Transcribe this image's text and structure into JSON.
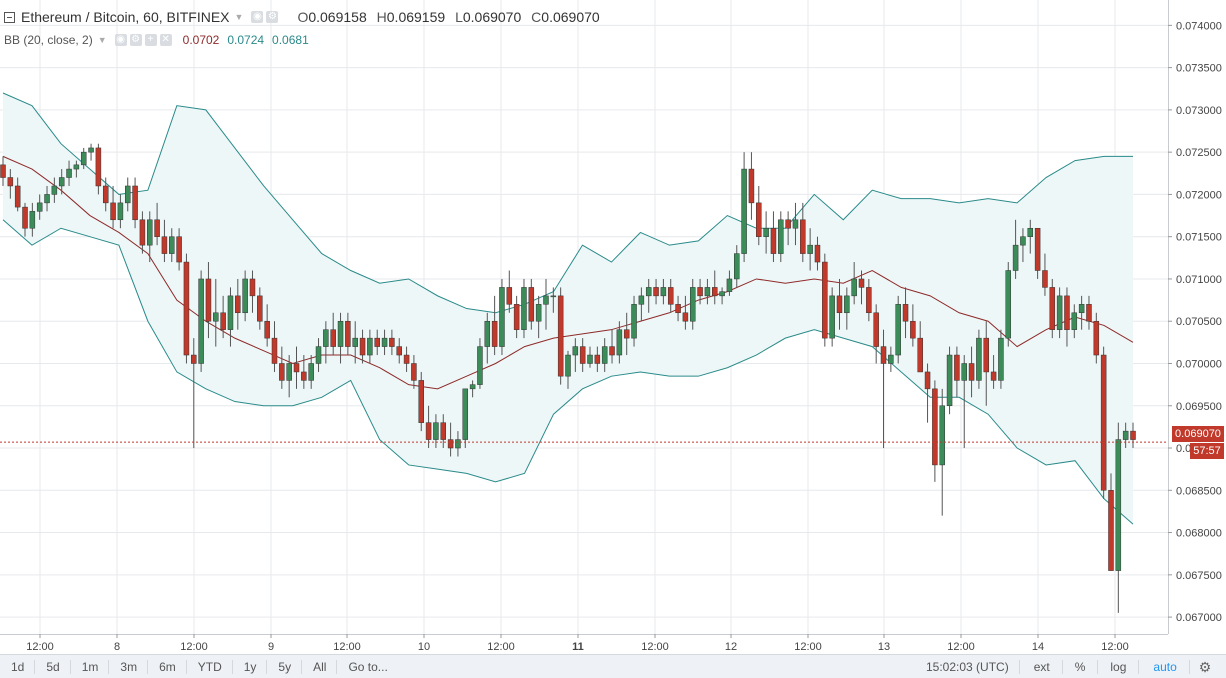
{
  "legend": {
    "symbol": "Ethereum / Bitcoin, 60, BITFINEX",
    "ohlc": [
      {
        "k": "O",
        "v": "0.069158"
      },
      {
        "k": "H",
        "v": "0.069159"
      },
      {
        "k": "L",
        "v": "0.069070"
      },
      {
        "k": "C",
        "v": "0.069070"
      }
    ],
    "indicator": "BB (20, close, 2)",
    "bb_values": [
      {
        "v": "0.0702",
        "color": "#8e2a2a"
      },
      {
        "v": "0.0724",
        "color": "#2a8a8a"
      },
      {
        "v": "0.0681",
        "color": "#2a8a8a"
      }
    ]
  },
  "price_axis": {
    "ticks": [
      "0.074000",
      "0.073500",
      "0.073000",
      "0.072500",
      "0.072000",
      "0.071500",
      "0.071000",
      "0.070500",
      "0.070000",
      "0.069500",
      "0.069000",
      "0.068500",
      "0.068000",
      "0.067500",
      "0.067000"
    ],
    "last_price": "0.069070",
    "countdown": "57:57"
  },
  "time_axis": {
    "labels": [
      "12:00",
      "8",
      "12:00",
      "9",
      "12:00",
      "10",
      "12:00",
      "11",
      "12:00",
      "12",
      "12:00",
      "13",
      "12:00",
      "14",
      "12:00"
    ],
    "bold_label": "11"
  },
  "bottom_bar": {
    "timeframes": [
      "1d",
      "5d",
      "1m",
      "3m",
      "6m",
      "YTD",
      "1y",
      "5y",
      "All"
    ],
    "goto": "Go to...",
    "clock": "15:02:03 (UTC)",
    "ext": "ext",
    "percent": "%",
    "log": "log",
    "auto": "auto"
  },
  "colors": {
    "up": "#3c8c5a",
    "down": "#c0392b",
    "bb_band": "#2a8a8a",
    "bb_basis": "#8e2a2a",
    "bb_fill": "#eef7f7",
    "auto": "#2196f3"
  },
  "chart_data": {
    "type": "candlestick",
    "title": "Ethereum / Bitcoin, 60, BITFINEX",
    "ylim": [
      0.0668,
      0.0743
    ],
    "grid": true,
    "candles": [
      [
        0.07235,
        0.07245,
        0.0721,
        0.0722
      ],
      [
        0.0722,
        0.0723,
        0.07195,
        0.0721
      ],
      [
        0.0721,
        0.0722,
        0.0718,
        0.07185
      ],
      [
        0.07185,
        0.0719,
        0.0715,
        0.0716
      ],
      [
        0.0716,
        0.0719,
        0.0715,
        0.0718
      ],
      [
        0.0718,
        0.072,
        0.0717,
        0.0719
      ],
      [
        0.0719,
        0.0721,
        0.0718,
        0.072
      ],
      [
        0.072,
        0.0722,
        0.0719,
        0.0721
      ],
      [
        0.0721,
        0.0723,
        0.072,
        0.0722
      ],
      [
        0.0722,
        0.0724,
        0.0721,
        0.0723
      ],
      [
        0.0723,
        0.0724,
        0.0722,
        0.07235
      ],
      [
        0.07235,
        0.07255,
        0.0723,
        0.0725
      ],
      [
        0.0725,
        0.0726,
        0.0724,
        0.07255
      ],
      [
        0.07255,
        0.0726,
        0.072,
        0.0721
      ],
      [
        0.0721,
        0.0722,
        0.0718,
        0.0719
      ],
      [
        0.0719,
        0.0721,
        0.0716,
        0.0717
      ],
      [
        0.0717,
        0.072,
        0.0716,
        0.0719
      ],
      [
        0.0719,
        0.0722,
        0.0718,
        0.0721
      ],
      [
        0.0721,
        0.0722,
        0.0716,
        0.0717
      ],
      [
        0.0717,
        0.0718,
        0.0713,
        0.0714
      ],
      [
        0.0714,
        0.0718,
        0.0712,
        0.0717
      ],
      [
        0.0717,
        0.0719,
        0.0714,
        0.0715
      ],
      [
        0.0715,
        0.0717,
        0.0712,
        0.0713
      ],
      [
        0.0713,
        0.0716,
        0.0712,
        0.0715
      ],
      [
        0.0715,
        0.0716,
        0.0711,
        0.0712
      ],
      [
        0.0712,
        0.0713,
        0.07,
        0.0701
      ],
      [
        0.0701,
        0.0703,
        0.069,
        0.07
      ],
      [
        0.07,
        0.0711,
        0.0699,
        0.071
      ],
      [
        0.071,
        0.0712,
        0.0703,
        0.0705
      ],
      [
        0.0705,
        0.071,
        0.0702,
        0.0706
      ],
      [
        0.0706,
        0.0708,
        0.0703,
        0.0704
      ],
      [
        0.0704,
        0.0709,
        0.0702,
        0.0708
      ],
      [
        0.0708,
        0.071,
        0.0704,
        0.0706
      ],
      [
        0.0706,
        0.0711,
        0.0705,
        0.071
      ],
      [
        0.071,
        0.0711,
        0.0706,
        0.0708
      ],
      [
        0.0708,
        0.0709,
        0.0704,
        0.0705
      ],
      [
        0.0705,
        0.0707,
        0.0702,
        0.0703
      ],
      [
        0.0703,
        0.0705,
        0.0699,
        0.07
      ],
      [
        0.07,
        0.0702,
        0.0697,
        0.0698
      ],
      [
        0.0698,
        0.0701,
        0.0696,
        0.07
      ],
      [
        0.07,
        0.0702,
        0.0697,
        0.0699
      ],
      [
        0.0699,
        0.0701,
        0.0697,
        0.0698
      ],
      [
        0.0698,
        0.0701,
        0.0697,
        0.07
      ],
      [
        0.07,
        0.0703,
        0.0699,
        0.0702
      ],
      [
        0.0702,
        0.0705,
        0.07,
        0.0704
      ],
      [
        0.0704,
        0.0706,
        0.0701,
        0.0702
      ],
      [
        0.0702,
        0.0706,
        0.07,
        0.0705
      ],
      [
        0.0705,
        0.0706,
        0.0701,
        0.0702
      ],
      [
        0.0702,
        0.0705,
        0.07,
        0.0703
      ],
      [
        0.0703,
        0.0704,
        0.07,
        0.0701
      ],
      [
        0.0701,
        0.0704,
        0.07,
        0.0703
      ],
      [
        0.0703,
        0.0704,
        0.0701,
        0.0702
      ],
      [
        0.0702,
        0.0704,
        0.0701,
        0.0703
      ],
      [
        0.0703,
        0.0704,
        0.0701,
        0.0702
      ],
      [
        0.0702,
        0.0703,
        0.07,
        0.0701
      ],
      [
        0.0701,
        0.0702,
        0.0699,
        0.07
      ],
      [
        0.07,
        0.0701,
        0.0697,
        0.0698
      ],
      [
        0.0698,
        0.0699,
        0.0692,
        0.0693
      ],
      [
        0.0693,
        0.0695,
        0.069,
        0.0691
      ],
      [
        0.0691,
        0.0694,
        0.069,
        0.0693
      ],
      [
        0.0693,
        0.0694,
        0.069,
        0.0691
      ],
      [
        0.0691,
        0.0693,
        0.0689,
        0.069
      ],
      [
        0.069,
        0.0692,
        0.0689,
        0.0691
      ],
      [
        0.0691,
        0.0697,
        0.069,
        0.0697
      ],
      [
        0.0697,
        0.0698,
        0.0696,
        0.06975
      ],
      [
        0.06975,
        0.0703,
        0.0697,
        0.0702
      ],
      [
        0.0702,
        0.0706,
        0.07,
        0.0705
      ],
      [
        0.0705,
        0.0708,
        0.0701,
        0.0702
      ],
      [
        0.0702,
        0.071,
        0.0701,
        0.0709
      ],
      [
        0.0709,
        0.0711,
        0.0706,
        0.0707
      ],
      [
        0.0707,
        0.0708,
        0.0703,
        0.0704
      ],
      [
        0.0704,
        0.071,
        0.0703,
        0.0709
      ],
      [
        0.0709,
        0.071,
        0.0704,
        0.0705
      ],
      [
        0.0705,
        0.0708,
        0.0703,
        0.0707
      ],
      [
        0.0707,
        0.071,
        0.0704,
        0.0708
      ],
      [
        0.0708,
        0.0709,
        0.0706,
        0.0708
      ],
      [
        0.0708,
        0.0709,
        0.06975,
        0.06985
      ],
      [
        0.06985,
        0.07015,
        0.0697,
        0.0701
      ],
      [
        0.0701,
        0.0703,
        0.0699,
        0.0702
      ],
      [
        0.0702,
        0.0703,
        0.0699,
        0.07
      ],
      [
        0.07,
        0.0702,
        0.06995,
        0.0701
      ],
      [
        0.0701,
        0.0702,
        0.0699,
        0.07
      ],
      [
        0.07,
        0.0703,
        0.0699,
        0.0702
      ],
      [
        0.0702,
        0.0704,
        0.07,
        0.0701
      ],
      [
        0.0701,
        0.0705,
        0.07,
        0.0704
      ],
      [
        0.0704,
        0.0706,
        0.0701,
        0.0703
      ],
      [
        0.0703,
        0.0708,
        0.0702,
        0.0707
      ],
      [
        0.0707,
        0.0709,
        0.0705,
        0.0708
      ],
      [
        0.0708,
        0.071,
        0.0706,
        0.0709
      ],
      [
        0.0709,
        0.071,
        0.0707,
        0.0708
      ],
      [
        0.0708,
        0.071,
        0.0707,
        0.0709
      ],
      [
        0.0709,
        0.071,
        0.0706,
        0.0707
      ],
      [
        0.0707,
        0.0708,
        0.0705,
        0.0706
      ],
      [
        0.0706,
        0.0708,
        0.0704,
        0.0705
      ],
      [
        0.0705,
        0.071,
        0.0704,
        0.0709
      ],
      [
        0.0709,
        0.071,
        0.0707,
        0.0708
      ],
      [
        0.0708,
        0.071,
        0.0707,
        0.0709
      ],
      [
        0.0709,
        0.0711,
        0.0707,
        0.0708
      ],
      [
        0.0708,
        0.0709,
        0.0707,
        0.07085
      ],
      [
        0.07085,
        0.0711,
        0.0708,
        0.071
      ],
      [
        0.071,
        0.0714,
        0.0709,
        0.0713
      ],
      [
        0.0713,
        0.0725,
        0.0712,
        0.0723
      ],
      [
        0.0723,
        0.0725,
        0.0717,
        0.0719
      ],
      [
        0.0719,
        0.0721,
        0.0714,
        0.0715
      ],
      [
        0.0715,
        0.0718,
        0.0713,
        0.0716
      ],
      [
        0.0716,
        0.0718,
        0.0712,
        0.0713
      ],
      [
        0.0713,
        0.0718,
        0.0712,
        0.0717
      ],
      [
        0.0717,
        0.0718,
        0.0714,
        0.0716
      ],
      [
        0.0716,
        0.0719,
        0.0714,
        0.0717
      ],
      [
        0.0717,
        0.0719,
        0.0712,
        0.0713
      ],
      [
        0.0713,
        0.0716,
        0.0711,
        0.0714
      ],
      [
        0.0714,
        0.0715,
        0.0711,
        0.0712
      ],
      [
        0.0712,
        0.0713,
        0.0702,
        0.0703
      ],
      [
        0.0703,
        0.0709,
        0.0702,
        0.0708
      ],
      [
        0.0708,
        0.071,
        0.0704,
        0.0706
      ],
      [
        0.0706,
        0.0709,
        0.0704,
        0.0708
      ],
      [
        0.0708,
        0.0712,
        0.0707,
        0.071
      ],
      [
        0.071,
        0.0711,
        0.0707,
        0.0709
      ],
      [
        0.0709,
        0.071,
        0.0705,
        0.0706
      ],
      [
        0.0706,
        0.0707,
        0.07,
        0.0702
      ],
      [
        0.0702,
        0.0704,
        0.069,
        0.07
      ],
      [
        0.07,
        0.0702,
        0.0699,
        0.0701
      ],
      [
        0.0701,
        0.0708,
        0.07,
        0.0707
      ],
      [
        0.0707,
        0.0709,
        0.0703,
        0.0705
      ],
      [
        0.0705,
        0.0707,
        0.0702,
        0.0703
      ],
      [
        0.0703,
        0.0705,
        0.0699,
        0.0699
      ],
      [
        0.0699,
        0.07,
        0.0693,
        0.0697
      ],
      [
        0.0697,
        0.0698,
        0.0686,
        0.0688
      ],
      [
        0.0688,
        0.0697,
        0.0682,
        0.0695
      ],
      [
        0.0695,
        0.0702,
        0.0694,
        0.0701
      ],
      [
        0.0701,
        0.0702,
        0.0696,
        0.0698
      ],
      [
        0.0698,
        0.0701,
        0.069,
        0.07
      ],
      [
        0.07,
        0.0702,
        0.0696,
        0.0698
      ],
      [
        0.0698,
        0.0704,
        0.0697,
        0.0703
      ],
      [
        0.0703,
        0.0705,
        0.0695,
        0.0699
      ],
      [
        0.0699,
        0.0701,
        0.0697,
        0.0698
      ],
      [
        0.0698,
        0.0704,
        0.0697,
        0.0703
      ],
      [
        0.0703,
        0.0712,
        0.0702,
        0.0711
      ],
      [
        0.0711,
        0.0717,
        0.071,
        0.0714
      ],
      [
        0.0714,
        0.0716,
        0.0712,
        0.0715
      ],
      [
        0.0715,
        0.0717,
        0.0713,
        0.0716
      ],
      [
        0.0716,
        0.0716,
        0.071,
        0.0711
      ],
      [
        0.0711,
        0.0713,
        0.0708,
        0.0709
      ],
      [
        0.0709,
        0.071,
        0.0703,
        0.0704
      ],
      [
        0.0704,
        0.0709,
        0.0703,
        0.0708
      ],
      [
        0.0708,
        0.0709,
        0.0702,
        0.0704
      ],
      [
        0.0704,
        0.0707,
        0.0703,
        0.0706
      ],
      [
        0.0706,
        0.0708,
        0.0704,
        0.0707
      ],
      [
        0.0707,
        0.0708,
        0.0704,
        0.0705
      ],
      [
        0.0705,
        0.0706,
        0.07,
        0.0701
      ],
      [
        0.0701,
        0.0702,
        0.0684,
        0.0685
      ],
      [
        0.0685,
        0.0687,
        0.06755,
        0.06755
      ],
      [
        0.06755,
        0.0693,
        0.06705,
        0.0691
      ],
      [
        0.0691,
        0.0693,
        0.069,
        0.0692
      ],
      [
        0.0692,
        0.0693,
        0.069,
        0.0691
      ]
    ],
    "bb_upper": [
      0.0732,
      0.07305,
      0.0726,
      0.0723,
      0.072,
      0.07205,
      0.07305,
      0.073,
      0.07255,
      0.0721,
      0.0717,
      0.0713,
      0.0711,
      0.07095,
      0.071,
      0.0708,
      0.07065,
      0.0706,
      0.0707,
      0.07085,
      0.0714,
      0.0712,
      0.07155,
      0.0714,
      0.07145,
      0.07175,
      0.0716,
      0.0716,
      0.072,
      0.0717,
      0.07205,
      0.07195,
      0.07195,
      0.0719,
      0.07195,
      0.0719,
      0.0722,
      0.0724,
      0.07245,
      0.07245
    ],
    "bb_lower": [
      0.0717,
      0.0714,
      0.0716,
      0.0715,
      0.0714,
      0.0705,
      0.0699,
      0.0697,
      0.06955,
      0.0695,
      0.0695,
      0.0696,
      0.0698,
      0.0691,
      0.0688,
      0.06875,
      0.0687,
      0.0686,
      0.0687,
      0.0694,
      0.0697,
      0.06985,
      0.0699,
      0.06985,
      0.06985,
      0.06995,
      0.0701,
      0.0703,
      0.0704,
      0.0703,
      0.0702,
      0.0699,
      0.0696,
      0.0696,
      0.0694,
      0.069,
      0.0688,
      0.06885,
      0.0684,
      0.0681
    ],
    "bb_basis": [
      0.07245,
      0.0723,
      0.07205,
      0.07175,
      0.07155,
      0.0713,
      0.07075,
      0.0705,
      0.0703,
      0.07015,
      0.07,
      0.0701,
      0.0701,
      0.06995,
      0.06975,
      0.0697,
      0.06985,
      0.07,
      0.0702,
      0.0703,
      0.07035,
      0.0704,
      0.0705,
      0.0706,
      0.07075,
      0.07085,
      0.071,
      0.07095,
      0.071,
      0.07095,
      0.0711,
      0.0709,
      0.0708,
      0.0706,
      0.0705,
      0.0702,
      0.0704,
      0.07055,
      0.07045,
      0.07025
    ]
  }
}
